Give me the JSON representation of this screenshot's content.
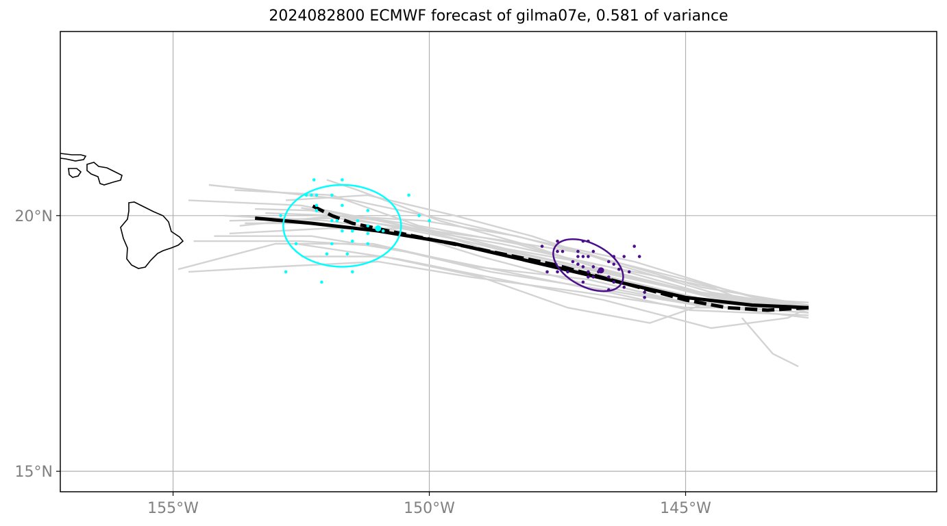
{
  "title": "2024082800 ECMWF forecast of gilma07e, 0.581 of variance",
  "map": {
    "lon_range": [
      -157.2,
      -140.1
    ],
    "lat_range": [
      14.6,
      23.6
    ],
    "gridlines": true,
    "lon_ticks": [
      {
        "value": -155,
        "label": "155°W"
      },
      {
        "value": -150,
        "label": "150°W"
      },
      {
        "value": -145,
        "label": "145°W"
      }
    ],
    "lat_ticks": [
      {
        "value": 20,
        "label": "20°N"
      },
      {
        "value": 15,
        "label": "15°N"
      }
    ],
    "colors": {
      "ensemble": "#d3d3d3",
      "track": "#000000",
      "early_points": "#00ffff",
      "late_points": "#4b0f8c",
      "grid": "#b0b0b0",
      "coast": "#000000"
    }
  },
  "chart_data": {
    "type": "scatter",
    "ensemble_tracks": [
      [
        [
          -142.6,
          18.2
        ],
        [
          -144.5,
          18.4
        ],
        [
          -146.5,
          18.9
        ],
        [
          -148.5,
          19.3
        ],
        [
          -150.5,
          19.8
        ],
        [
          -152.5,
          20.2
        ],
        [
          -154.7,
          20.3
        ]
      ],
      [
        [
          -142.6,
          18.15
        ],
        [
          -144.8,
          18.5
        ],
        [
          -146.8,
          18.95
        ],
        [
          -148.8,
          19.4
        ],
        [
          -150.8,
          19.8
        ],
        [
          -152.3,
          20.1
        ],
        [
          -153.4,
          20.13
        ]
      ],
      [
        [
          -142.6,
          18.1
        ],
        [
          -144.2,
          18.55
        ],
        [
          -146.0,
          19.1
        ],
        [
          -147.9,
          19.5
        ],
        [
          -149.6,
          19.9
        ],
        [
          -151.5,
          20.3
        ],
        [
          -154.3,
          20.6
        ]
      ],
      [
        [
          -142.6,
          18.2
        ],
        [
          -144.6,
          18.35
        ],
        [
          -146.7,
          18.85
        ],
        [
          -148.6,
          19.25
        ],
        [
          -150.5,
          19.85
        ],
        [
          -151.8,
          20.0
        ],
        [
          -153.2,
          20.05
        ]
      ],
      [
        [
          -142.6,
          18.0
        ],
        [
          -145.0,
          18.3
        ],
        [
          -147.1,
          18.7
        ],
        [
          -149.0,
          19.2
        ],
        [
          -150.6,
          19.7
        ],
        [
          -152.0,
          19.9
        ],
        [
          -154.0,
          20.0
        ]
      ],
      [
        [
          -142.6,
          18.25
        ],
        [
          -144.6,
          18.45
        ],
        [
          -146.6,
          18.95
        ],
        [
          -148.3,
          19.45
        ],
        [
          -150.2,
          19.8
        ],
        [
          -151.9,
          20.4
        ],
        [
          -153.8,
          20.5
        ]
      ],
      [
        [
          -142.6,
          18.1
        ],
        [
          -144.8,
          18.25
        ],
        [
          -146.9,
          18.6
        ],
        [
          -148.8,
          18.9
        ],
        [
          -150.9,
          19.4
        ],
        [
          -152.5,
          19.5
        ],
        [
          -154.6,
          19.5
        ]
      ],
      [
        [
          -142.6,
          18.2
        ],
        [
          -145.0,
          18.2
        ],
        [
          -147.0,
          18.5
        ],
        [
          -149.2,
          18.8
        ],
        [
          -151.0,
          19.1
        ],
        [
          -153.0,
          19.0
        ],
        [
          -154.7,
          18.9
        ]
      ],
      [
        [
          -142.6,
          18.15
        ],
        [
          -144.4,
          18.6
        ],
        [
          -146.4,
          19.1
        ],
        [
          -148.3,
          19.6
        ],
        [
          -150.1,
          19.9
        ],
        [
          -151.8,
          20.0
        ],
        [
          -153.7,
          19.8
        ]
      ],
      [
        [
          -142.6,
          18.2
        ],
        [
          -144.7,
          18.5
        ],
        [
          -146.5,
          19.0
        ],
        [
          -148.6,
          19.45
        ],
        [
          -150.4,
          19.75
        ],
        [
          -152.0,
          19.75
        ],
        [
          -153.9,
          19.65
        ]
      ],
      [
        [
          -142.6,
          18.05
        ],
        [
          -144.9,
          18.15
        ],
        [
          -146.5,
          18.5
        ],
        [
          -148.5,
          18.9
        ],
        [
          -150.5,
          19.3
        ],
        [
          -152.3,
          19.6
        ],
        [
          -154.2,
          19.6
        ]
      ],
      [
        [
          -142.6,
          18.2
        ],
        [
          -145.0,
          18.3
        ],
        [
          -146.9,
          18.75
        ],
        [
          -149.1,
          19.0
        ],
        [
          -151.1,
          19.45
        ],
        [
          -153.0,
          19.45
        ],
        [
          -154.9,
          18.95
        ]
      ],
      [
        [
          -142.6,
          18.25
        ],
        [
          -144.7,
          18.6
        ],
        [
          -146.9,
          19.25
        ],
        [
          -148.8,
          19.55
        ],
        [
          -150.3,
          19.75
        ],
        [
          -151.8,
          19.95
        ],
        [
          -153.9,
          19.9
        ]
      ],
      [
        [
          -142.6,
          18.3
        ],
        [
          -144.2,
          18.4
        ],
        [
          -146.2,
          18.8
        ],
        [
          -148.0,
          19.4
        ],
        [
          -149.8,
          19.9
        ],
        [
          -151.4,
          20.5
        ],
        [
          -152.0,
          20.7
        ]
      ],
      [
        [
          -142.6,
          18.2
        ],
        [
          -144.4,
          18.35
        ],
        [
          -145.7,
          17.9
        ],
        [
          -147.3,
          18.2
        ],
        [
          -149.0,
          18.8
        ],
        [
          -150.9,
          19.2
        ],
        [
          -152.5,
          19.2
        ]
      ],
      [
        [
          -142.6,
          18.2
        ],
        [
          -143.5,
          18.2
        ],
        [
          -144.5,
          18.6
        ],
        [
          -146.5,
          19.0
        ],
        [
          -148.5,
          19.35
        ],
        [
          -150.5,
          19.85
        ],
        [
          -152.5,
          20.15
        ]
      ],
      [
        [
          -142.6,
          18.2
        ],
        [
          -143.0,
          18.0
        ],
        [
          -144.5,
          17.8
        ],
        [
          -146.6,
          18.35
        ],
        [
          -148.6,
          18.75
        ],
        [
          -150.6,
          19.15
        ],
        [
          -152.6,
          19.45
        ]
      ],
      [
        [
          -143.9,
          18.0
        ],
        [
          -143.3,
          17.3
        ],
        [
          -142.8,
          17.05
        ]
      ],
      [
        [
          -142.6,
          18.2
        ],
        [
          -144.5,
          18.5
        ],
        [
          -146.2,
          19.0
        ],
        [
          -148.0,
          19.6
        ],
        [
          -149.5,
          20.0
        ],
        [
          -151.2,
          20.4
        ],
        [
          -152.8,
          20.3
        ]
      ],
      [
        [
          -142.6,
          18.15
        ],
        [
          -144.6,
          18.45
        ],
        [
          -146.7,
          18.9
        ],
        [
          -148.7,
          19.3
        ],
        [
          -150.3,
          19.6
        ],
        [
          -152.2,
          19.85
        ],
        [
          -153.6,
          19.85
        ]
      ]
    ],
    "mean_track": [
      [
        -142.6,
        18.2
      ],
      [
        -143.7,
        18.25
      ],
      [
        -145.0,
        18.4
      ],
      [
        -146.3,
        18.7
      ],
      [
        -147.8,
        19.05
      ],
      [
        -149.5,
        19.45
      ],
      [
        -151.0,
        19.7
      ],
      [
        -152.3,
        19.85
      ],
      [
        -153.4,
        19.95
      ]
    ],
    "deterministic_track": [
      [
        -142.6,
        18.2
      ],
      [
        -143.4,
        18.15
      ],
      [
        -144.2,
        18.2
      ],
      [
        -145.0,
        18.35
      ],
      [
        -146.1,
        18.65
      ],
      [
        -147.6,
        19.05
      ],
      [
        -149.3,
        19.4
      ],
      [
        -150.8,
        19.7
      ],
      [
        -151.5,
        19.85
      ],
      [
        -151.9,
        20.0
      ],
      [
        -152.3,
        20.2
      ]
    ],
    "early_mean": [
      -151.0,
      19.75
    ],
    "late_mean": [
      -146.65,
      18.93
    ],
    "early_ellipse": {
      "center": [
        -151.7,
        19.8
      ],
      "semi_axes_deg": [
        1.15,
        0.8
      ],
      "rotation_deg": 0
    },
    "late_ellipse": {
      "center": [
        -146.9,
        19.03
      ],
      "semi_axes_deg": [
        0.74,
        0.42
      ],
      "rotation_deg": 28
    },
    "early_points": [
      [
        -151.7,
        20.7
      ],
      [
        -152.25,
        20.7
      ],
      [
        -151.9,
        20.4
      ],
      [
        -152.4,
        20.4
      ],
      [
        -152.3,
        20.4
      ],
      [
        -152.2,
        20.4
      ],
      [
        -152.2,
        20.2
      ],
      [
        -152.2,
        20.1
      ],
      [
        -151.7,
        20.2
      ],
      [
        -151.8,
        19.9
      ],
      [
        -151.9,
        19.9
      ],
      [
        -151.5,
        19.7
      ],
      [
        -151.2,
        19.8
      ],
      [
        -151.7,
        19.7
      ],
      [
        -151.5,
        19.5
      ],
      [
        -151.2,
        19.65
      ],
      [
        -151.4,
        19.9
      ],
      [
        -151.2,
        20.1
      ],
      [
        -150.9,
        19.7
      ],
      [
        -151.2,
        19.45
      ],
      [
        -151.9,
        19.45
      ],
      [
        -151.6,
        19.25
      ],
      [
        -152.0,
        19.25
      ],
      [
        -152.6,
        19.45
      ],
      [
        -152.8,
        18.9
      ],
      [
        -152.1,
        18.7
      ],
      [
        -151.5,
        18.9
      ],
      [
        -150.4,
        20.4
      ],
      [
        -150.2,
        20.0
      ],
      [
        -150.0,
        19.9
      ],
      [
        -152.9,
        20.0
      ]
    ],
    "late_points": [
      [
        -147.5,
        19.5
      ],
      [
        -147.5,
        19.3
      ],
      [
        -147.4,
        19.3
      ],
      [
        -147.1,
        19.3
      ],
      [
        -147.1,
        19.2
      ],
      [
        -147.0,
        19.2
      ],
      [
        -147.0,
        19.5
      ],
      [
        -146.9,
        19.5
      ],
      [
        -146.8,
        19.3
      ],
      [
        -146.9,
        19.2
      ],
      [
        -147.2,
        19.1
      ],
      [
        -147.1,
        19.05
      ],
      [
        -147.0,
        19.0
      ],
      [
        -146.8,
        19.0
      ],
      [
        -146.9,
        18.9
      ],
      [
        -146.7,
        18.9
      ],
      [
        -146.9,
        18.8
      ],
      [
        -146.8,
        18.8
      ],
      [
        -146.5,
        19.1
      ],
      [
        -146.4,
        19.2
      ],
      [
        -146.4,
        19.05
      ],
      [
        -146.2,
        19.2
      ],
      [
        -146.3,
        18.95
      ],
      [
        -146.1,
        18.9
      ],
      [
        -147.0,
        18.7
      ],
      [
        -147.3,
        18.9
      ],
      [
        -146.5,
        18.8
      ],
      [
        -146.2,
        18.6
      ],
      [
        -146.0,
        19.4
      ],
      [
        -145.9,
        19.2
      ],
      [
        -147.5,
        18.9
      ],
      [
        -147.7,
        18.9
      ],
      [
        -147.8,
        19.4
      ],
      [
        -145.8,
        18.5
      ],
      [
        -145.8,
        18.4
      ],
      [
        -146.4,
        18.7
      ],
      [
        -146.5,
        18.55
      ]
    ]
  }
}
